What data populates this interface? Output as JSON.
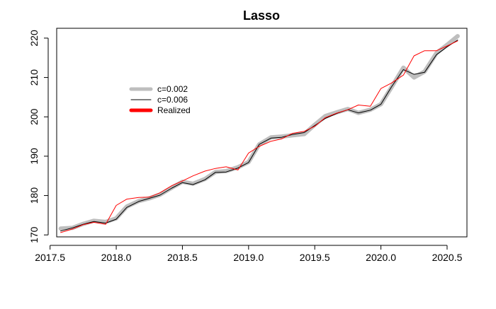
{
  "chart_data": {
    "type": "line",
    "title": "Lasso",
    "xlabel": "",
    "ylabel": "",
    "xlim": [
      2017.55,
      2020.65
    ],
    "ylim": [
      169.5,
      222.5
    ],
    "x_ticks": [
      "2017.5",
      "2018.0",
      "2018.5",
      "2019.0",
      "2019.5",
      "2020.0",
      "2020.5"
    ],
    "y_ticks": [
      "170",
      "180",
      "190",
      "200",
      "210",
      "220"
    ],
    "grid": false,
    "legend_position": "top-left",
    "x": [
      2017.58,
      2017.67,
      2017.75,
      2017.83,
      2017.92,
      2018.0,
      2018.08,
      2018.17,
      2018.25,
      2018.33,
      2018.42,
      2018.5,
      2018.58,
      2018.67,
      2018.75,
      2018.83,
      2018.92,
      2019.0,
      2019.08,
      2019.17,
      2019.25,
      2019.33,
      2019.42,
      2019.5,
      2019.58,
      2019.67,
      2019.75,
      2019.83,
      2019.92,
      2020.0,
      2020.08,
      2020.17,
      2020.25,
      2020.33,
      2020.42,
      2020.5,
      2020.58
    ],
    "series": [
      {
        "name": "c=0.002",
        "color": "#bebebe",
        "values": [
          171.6,
          171.8,
          172.8,
          173.6,
          173.3,
          174.2,
          177.2,
          178.6,
          179.3,
          180.2,
          182.0,
          183.5,
          183.0,
          184.2,
          186.0,
          186.2,
          187.2,
          188.5,
          193.0,
          194.8,
          195.0,
          195.3,
          195.6,
          198.0,
          200.2,
          201.2,
          202.0,
          201.0,
          201.8,
          203.2,
          207.5,
          212.5,
          210.0,
          211.5,
          216.2,
          218.3,
          220.5
        ]
      },
      {
        "name": "c=0.006",
        "color": "#000000",
        "values": [
          171.0,
          171.8,
          172.7,
          173.4,
          173.0,
          174.0,
          177.0,
          178.5,
          179.3,
          180.1,
          181.9,
          183.3,
          182.8,
          184.0,
          185.9,
          186.0,
          187.0,
          188.4,
          193.0,
          194.6,
          194.8,
          195.5,
          196.0,
          197.8,
          199.6,
          200.9,
          201.8,
          201.0,
          201.7,
          203.2,
          207.6,
          212.0,
          210.8,
          211.3,
          215.8,
          217.8,
          219.5
        ]
      },
      {
        "name": "Realized",
        "color": "#ff0000",
        "values": [
          170.6,
          171.5,
          172.6,
          173.2,
          172.7,
          177.5,
          179.1,
          179.5,
          179.6,
          180.7,
          182.5,
          183.7,
          185.0,
          186.2,
          186.9,
          187.3,
          186.5,
          190.8,
          192.5,
          193.8,
          194.4,
          195.8,
          196.3,
          197.6,
          199.8,
          201.0,
          201.8,
          203.0,
          202.7,
          207.2,
          208.6,
          210.6,
          215.5,
          216.8,
          216.8,
          218.0,
          219.3
        ]
      }
    ]
  }
}
